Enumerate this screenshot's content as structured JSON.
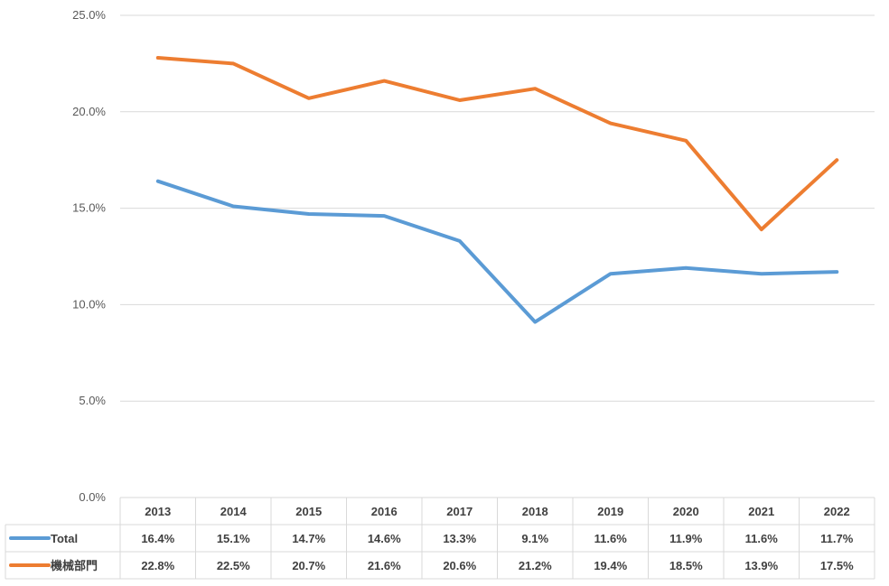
{
  "chart_data": {
    "type": "line",
    "categories": [
      "2013",
      "2014",
      "2015",
      "2016",
      "2017",
      "2018",
      "2019",
      "2020",
      "2021",
      "2022"
    ],
    "series": [
      {
        "name": "Total",
        "color": "#5B9BD5",
        "values": [
          16.4,
          15.1,
          14.7,
          14.6,
          13.3,
          9.1,
          11.6,
          11.9,
          11.6,
          11.7
        ],
        "labels": [
          "16.4%",
          "15.1%",
          "14.7%",
          "14.6%",
          "13.3%",
          "9.1%",
          "11.6%",
          "11.9%",
          "11.6%",
          "11.7%"
        ]
      },
      {
        "name": "機械部門",
        "color": "#ED7D31",
        "values": [
          22.8,
          22.5,
          20.7,
          21.6,
          20.6,
          21.2,
          19.4,
          18.5,
          13.9,
          17.5
        ],
        "labels": [
          "22.8%",
          "22.5%",
          "20.7%",
          "21.6%",
          "20.6%",
          "21.2%",
          "19.4%",
          "18.5%",
          "13.9%",
          "17.5%"
        ]
      }
    ],
    "ylim": [
      0,
      25
    ],
    "yticks": [
      0,
      5,
      10,
      15,
      20,
      25
    ],
    "ytick_labels": [
      "0.0%",
      "5.0%",
      "10.0%",
      "15.0%",
      "20.0%",
      "25.0%"
    ],
    "grid": true,
    "legend": "data-table-below",
    "title": "",
    "xlabel": "",
    "ylabel": ""
  }
}
